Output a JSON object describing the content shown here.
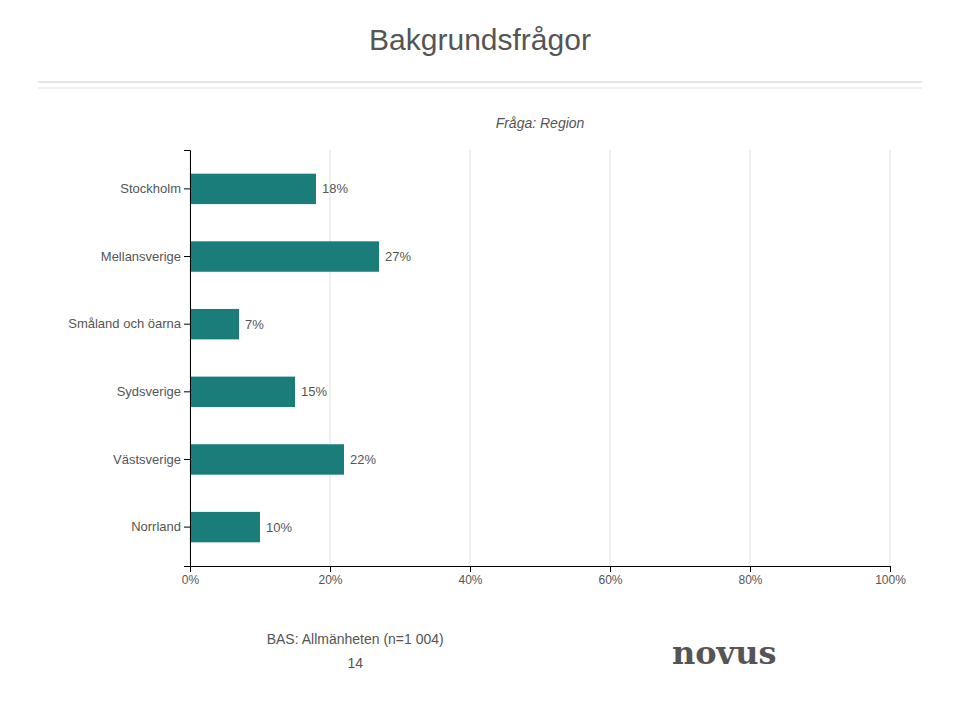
{
  "chart_data": {
    "type": "bar",
    "orientation": "horizontal",
    "title": "Bakgrundsfrågor",
    "subtitle": "Fråga: Region",
    "categories": [
      "Stockholm",
      "Mellansverige",
      "Småland och öarna",
      "Sydsverige",
      "Västsverige",
      "Norrland"
    ],
    "values": [
      18,
      27,
      7,
      15,
      22,
      10
    ],
    "value_labels": [
      "18%",
      "27%",
      "7%",
      "15%",
      "22%",
      "10%"
    ],
    "data_labels": true,
    "color": "#1a7d7a",
    "xlim": [
      0,
      100
    ],
    "xticks": [
      {
        "value": 0,
        "label": "0%"
      },
      {
        "value": 20,
        "label": "20%"
      },
      {
        "value": 40,
        "label": "40%"
      },
      {
        "value": 60,
        "label": "60%"
      },
      {
        "value": 80,
        "label": "80%"
      },
      {
        "value": 100,
        "label": "100%"
      }
    ],
    "grid": true,
    "annotations": [
      "BAS: Allmänheten (n=1 004)",
      "14",
      "novus"
    ]
  }
}
